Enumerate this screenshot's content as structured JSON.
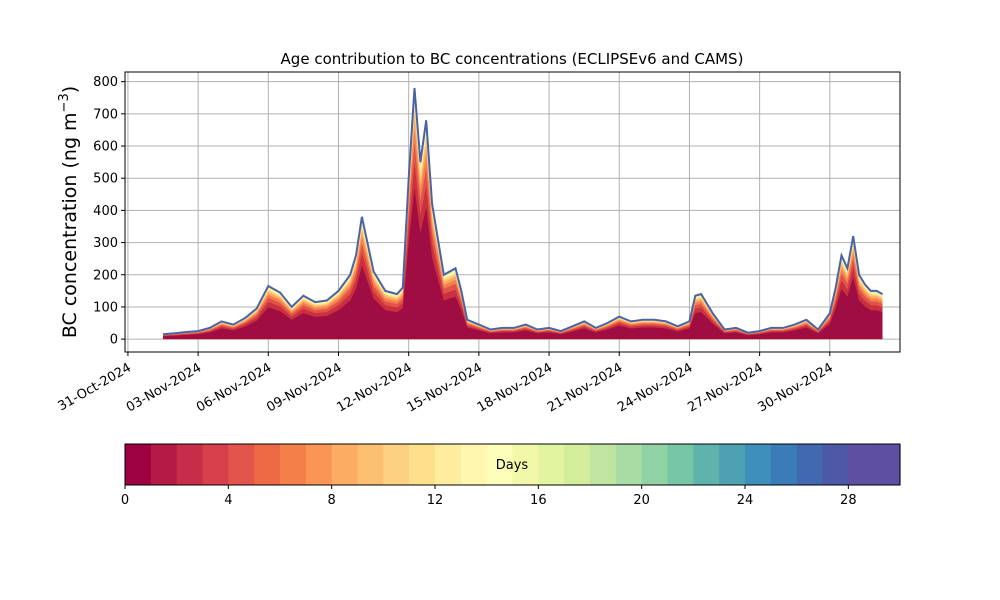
{
  "chart_data": {
    "type": "area",
    "title": "Age contribution to BC concentrations (ECLIPSEv6 and CAMS)",
    "ylabel": "BC concentration (ng m",
    "ylabel_sup": "−3",
    "ylabel_close": ")",
    "xlabel": "",
    "ylim": [
      -40,
      830
    ],
    "yticks": [
      0,
      100,
      200,
      300,
      400,
      500,
      600,
      700,
      800
    ],
    "xlim": [
      "2024-10-30T21:00",
      "2024-12-03T00:00"
    ],
    "xticks": [
      "31-Oct-2024",
      "03-Nov-2024",
      "06-Nov-2024",
      "09-Nov-2024",
      "12-Nov-2024",
      "15-Nov-2024",
      "18-Nov-2024",
      "21-Nov-2024",
      "24-Nov-2024",
      "27-Nov-2024",
      "30-Nov-2024"
    ],
    "xtick_dates": [
      "2024-10-31",
      "2024-11-03",
      "2024-11-06",
      "2024-11-09",
      "2024-11-12",
      "2024-11-15",
      "2024-11-18",
      "2024-11-21",
      "2024-11-24",
      "2024-11-27",
      "2024-11-30"
    ],
    "grid": true,
    "total_line_color": "#4a62a6",
    "x": [
      "2024-11-01T12:00",
      "2024-11-02T00:00",
      "2024-11-02T12:00",
      "2024-11-03T00:00",
      "2024-11-03T12:00",
      "2024-11-04T00:00",
      "2024-11-04T12:00",
      "2024-11-05T00:00",
      "2024-11-05T12:00",
      "2024-11-06T00:00",
      "2024-11-06T12:00",
      "2024-11-07T00:00",
      "2024-11-07T12:00",
      "2024-11-08T00:00",
      "2024-11-08T12:00",
      "2024-11-09T00:00",
      "2024-11-09T12:00",
      "2024-11-09T18:00",
      "2024-11-10T00:00",
      "2024-11-10T12:00",
      "2024-11-11T00:00",
      "2024-11-11T12:00",
      "2024-11-11T18:00",
      "2024-11-12T00:00",
      "2024-11-12T06:00",
      "2024-11-12T12:00",
      "2024-11-12T18:00",
      "2024-11-13T00:00",
      "2024-11-13T12:00",
      "2024-11-14T00:00",
      "2024-11-14T06:00",
      "2024-11-14T12:00",
      "2024-11-15T00:00",
      "2024-11-15T12:00",
      "2024-11-16T00:00",
      "2024-11-16T12:00",
      "2024-11-17T00:00",
      "2024-11-17T12:00",
      "2024-11-18T00:00",
      "2024-11-18T12:00",
      "2024-11-19T00:00",
      "2024-11-19T12:00",
      "2024-11-20T00:00",
      "2024-11-20T12:00",
      "2024-11-21T00:00",
      "2024-11-21T12:00",
      "2024-11-22T00:00",
      "2024-11-22T12:00",
      "2024-11-23T00:00",
      "2024-11-23T12:00",
      "2024-11-24T00:00",
      "2024-11-24T06:00",
      "2024-11-24T12:00",
      "2024-11-25T00:00",
      "2024-11-25T12:00",
      "2024-11-26T00:00",
      "2024-11-26T12:00",
      "2024-11-27T00:00",
      "2024-11-27T12:00",
      "2024-11-28T00:00",
      "2024-11-28T12:00",
      "2024-11-29T00:00",
      "2024-11-29T12:00",
      "2024-11-30T00:00",
      "2024-11-30T06:00",
      "2024-11-30T12:00",
      "2024-11-30T18:00",
      "2024-12-01T00:00",
      "2024-12-01T06:00",
      "2024-12-01T12:00",
      "2024-12-01T18:00",
      "2024-12-02T00:00",
      "2024-12-02T06:00"
    ],
    "total": [
      15,
      18,
      22,
      25,
      35,
      55,
      45,
      65,
      95,
      165,
      145,
      100,
      135,
      115,
      120,
      150,
      200,
      260,
      380,
      210,
      150,
      140,
      160,
      500,
      780,
      550,
      680,
      420,
      200,
      220,
      150,
      60,
      45,
      30,
      35,
      35,
      45,
      30,
      35,
      25,
      40,
      55,
      35,
      50,
      70,
      55,
      60,
      60,
      55,
      40,
      55,
      135,
      140,
      80,
      30,
      35,
      20,
      25,
      35,
      35,
      45,
      60,
      30,
      80,
      160,
      260,
      220,
      320,
      200,
      170,
      150,
      150,
      140
    ],
    "series": [
      {
        "name": "0-2",
        "color": "#a00d42",
        "fraction": 0.6
      },
      {
        "name": "2-4",
        "color": "#c8313d",
        "fraction": 0.1
      },
      {
        "name": "4-6",
        "color": "#e1524a",
        "fraction": 0.08
      },
      {
        "name": "6-8",
        "color": "#f47f4c",
        "fraction": 0.06
      },
      {
        "name": "8-10",
        "color": "#fba764",
        "fraction": 0.045
      },
      {
        "name": "10-12",
        "color": "#fdcb7b",
        "fraction": 0.035
      },
      {
        "name": "12-14",
        "color": "#fde89a",
        "fraction": 0.025
      },
      {
        "name": "14-16",
        "color": "#fbf8b0",
        "fraction": 0.018
      },
      {
        "name": "16-18",
        "color": "#eaf6a0",
        "fraction": 0.012
      },
      {
        "name": "18-20",
        "color": "#c6e79d",
        "fraction": 0.008
      },
      {
        "name": "20-22",
        "color": "#96d4a4",
        "fraction": 0.006
      },
      {
        "name": "22-24",
        "color": "#67bea7",
        "fraction": 0.004
      },
      {
        "name": "24-26",
        "color": "#4a9bb8",
        "fraction": 0.003
      },
      {
        "name": "26-28",
        "color": "#3e77b6",
        "fraction": 0.002
      },
      {
        "name": "28-30",
        "color": "#5a56a4",
        "fraction": 0.002
      }
    ]
  },
  "colorbar": {
    "label": "Days",
    "ticks": [
      "0",
      "4",
      "8",
      "12",
      "16",
      "20",
      "24",
      "28"
    ],
    "tick_values": [
      0,
      4,
      8,
      12,
      16,
      20,
      24,
      28
    ],
    "range": [
      0,
      30
    ],
    "colors": [
      "#9e0142",
      "#b31a46",
      "#c72c48",
      "#d73f4a",
      "#e3554a",
      "#ed6a45",
      "#f57f48",
      "#f99655",
      "#fcac63",
      "#fdbf71",
      "#fdd182",
      "#fee08b",
      "#feec9f",
      "#fff6b0",
      "#fbfdb8",
      "#f1f9a9",
      "#e3f4a0",
      "#d3ed9c",
      "#c0e5a0",
      "#a8dca4",
      "#8fd2a4",
      "#76c6a5",
      "#5fb3aa",
      "#4da1b3",
      "#3e8fbb",
      "#3a7cb8",
      "#4169af",
      "#4d58a6",
      "#5e4fa2",
      "#5e4fa2"
    ]
  }
}
